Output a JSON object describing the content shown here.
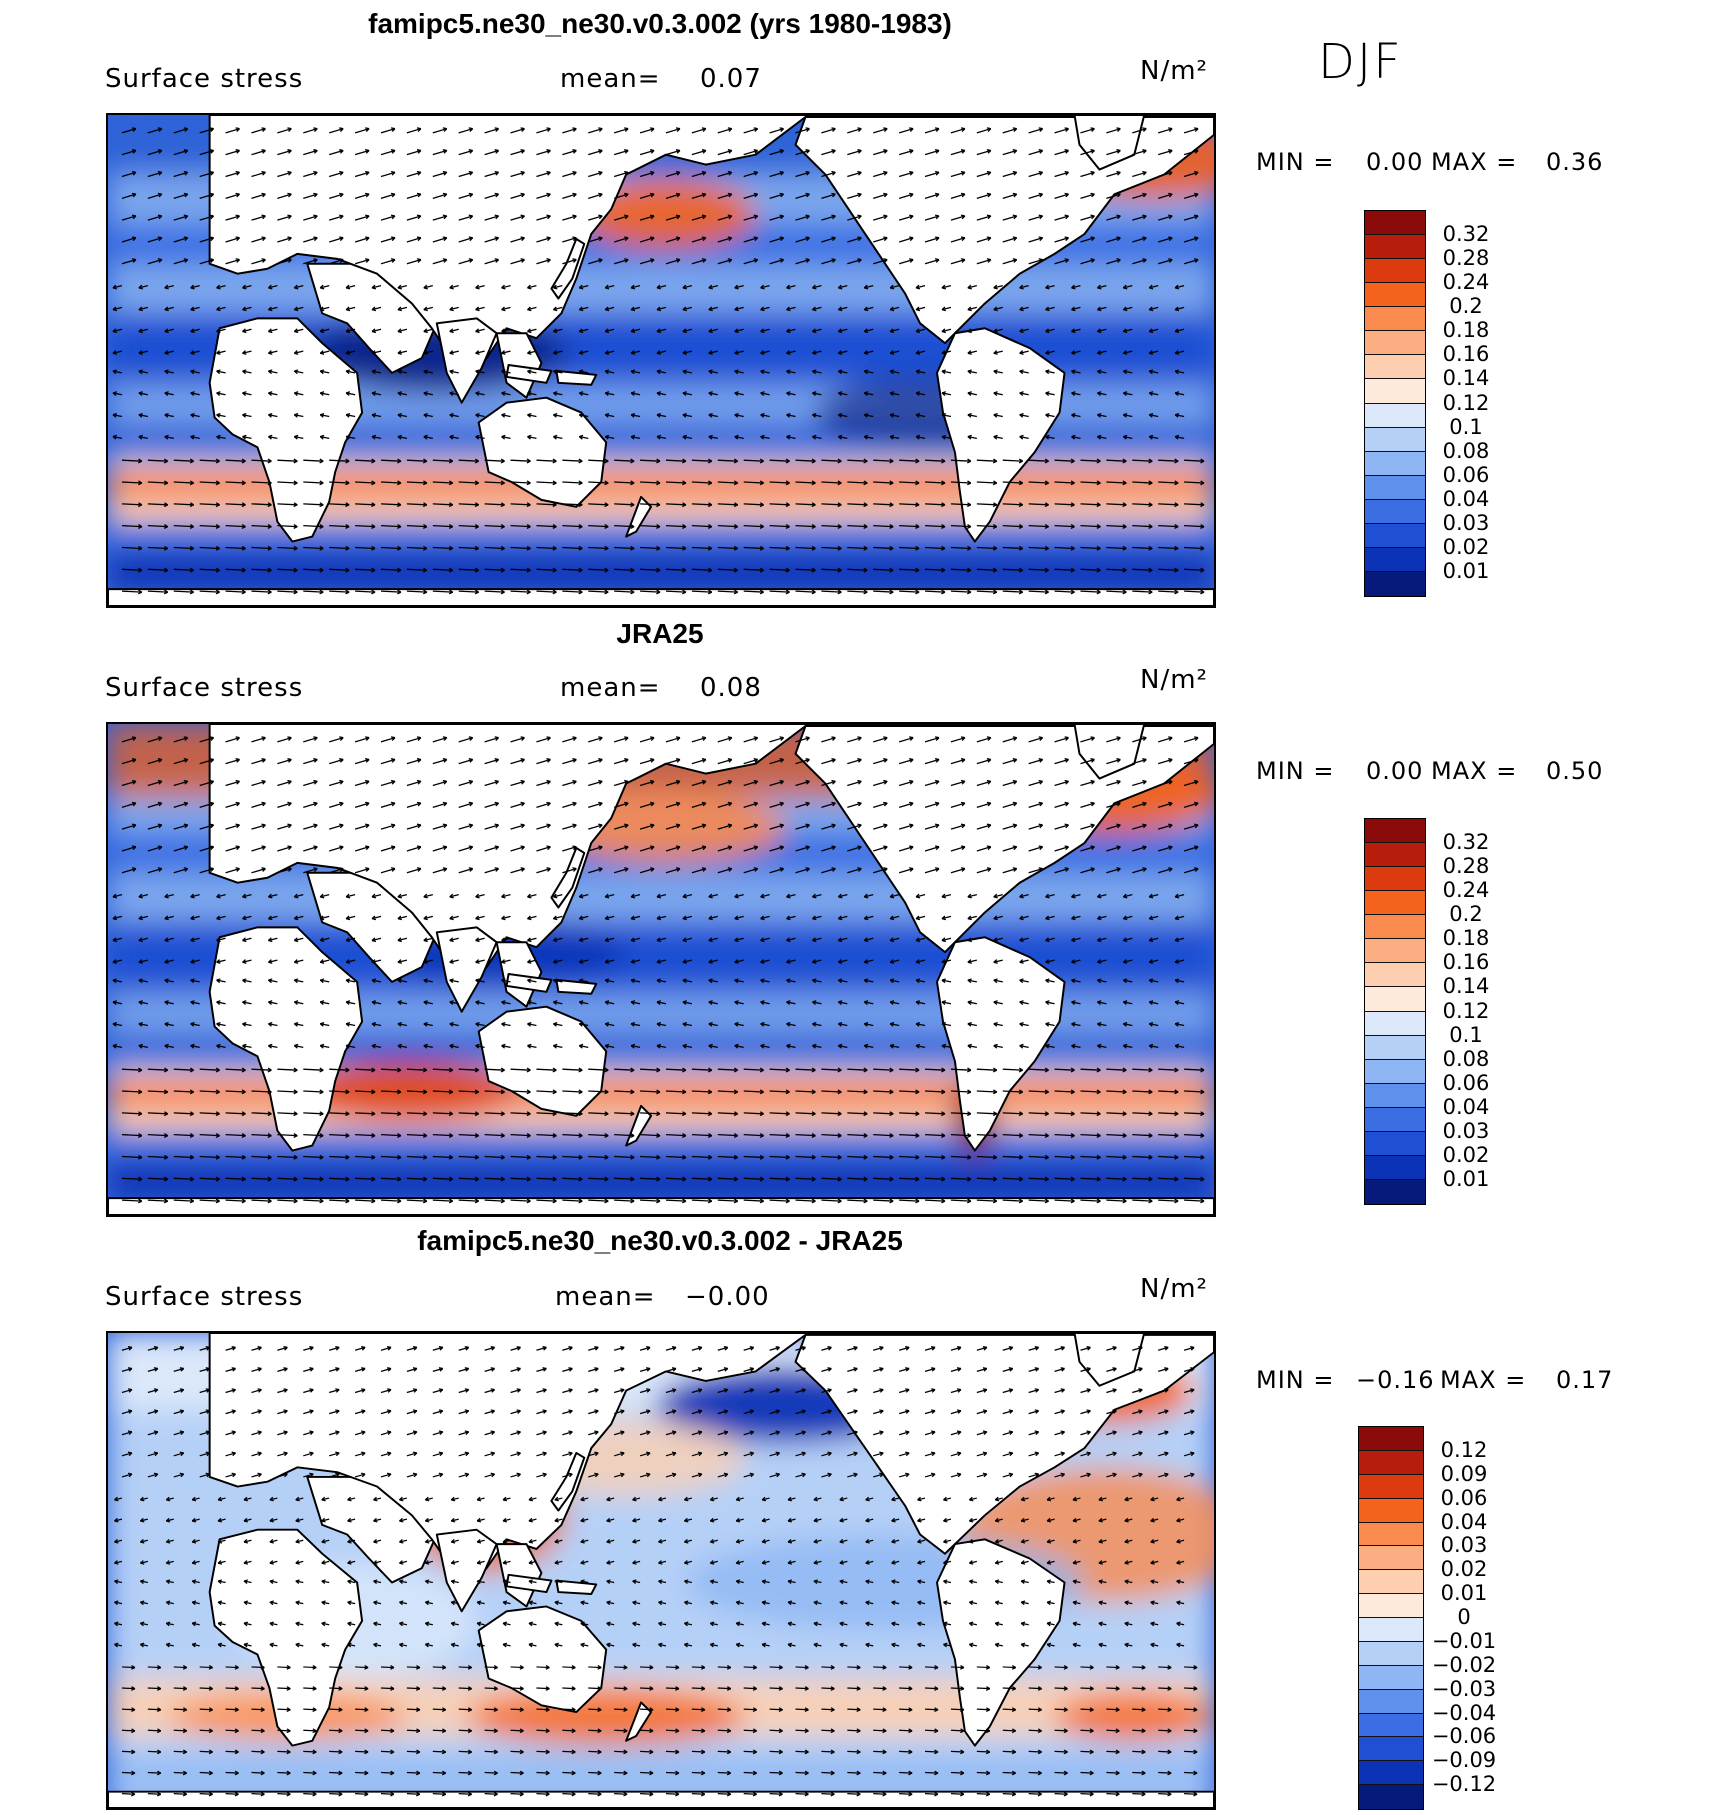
{
  "season": "DJF",
  "panels": [
    {
      "title": "famipc5.ne30_ne30.v0.3.002 (yrs 1980-1983)",
      "variable": "Surface stress",
      "mean_label": "mean=",
      "mean_value": "0.07",
      "units": "N/m²",
      "min_label": "MIN =",
      "min_value": "0.00",
      "max_label": "MAX =",
      "max_value": "0.36",
      "colorbar": {
        "labels": [
          "0.32",
          "0.28",
          "0.24",
          "0.2",
          "0.18",
          "0.16",
          "0.14",
          "0.12",
          "0.1",
          "0.08",
          "0.06",
          "0.04",
          "0.03",
          "0.02",
          "0.01"
        ],
        "colors": [
          "#8b0a0a",
          "#b81d0c",
          "#dc3b0f",
          "#f4621e",
          "#fa8a4e",
          "#fcae83",
          "#fdcfb0",
          "#feeada",
          "#dbe8fa",
          "#b5d0f7",
          "#8db6f3",
          "#5f91ec",
          "#3b6ee3",
          "#1f4fd3",
          "#0c32b6",
          "#061a7c"
        ]
      },
      "map_style": "model"
    },
    {
      "title": "JRA25",
      "variable": "Surface stress",
      "mean_label": "mean=",
      "mean_value": "0.08",
      "units": "N/m²",
      "min_label": "MIN =",
      "min_value": "0.00",
      "max_label": "MAX =",
      "max_value": "0.50",
      "colorbar": {
        "labels": [
          "0.32",
          "0.28",
          "0.24",
          "0.2",
          "0.18",
          "0.16",
          "0.14",
          "0.12",
          "0.1",
          "0.08",
          "0.06",
          "0.04",
          "0.03",
          "0.02",
          "0.01"
        ],
        "colors": [
          "#8b0a0a",
          "#b81d0c",
          "#dc3b0f",
          "#f4621e",
          "#fa8a4e",
          "#fcae83",
          "#fdcfb0",
          "#feeada",
          "#dbe8fa",
          "#b5d0f7",
          "#8db6f3",
          "#5f91ec",
          "#3b6ee3",
          "#1f4fd3",
          "#0c32b6",
          "#061a7c"
        ]
      },
      "map_style": "obs"
    },
    {
      "title": "famipc5.ne30_ne30.v0.3.002 - JRA25",
      "variable": "Surface stress",
      "mean_label": "mean=",
      "mean_value": "−0.00",
      "units": "N/m²",
      "min_label": "MIN =",
      "min_value": "−0.16",
      "max_label": "MAX =",
      "max_value": "0.17",
      "colorbar": {
        "labels": [
          "0.12",
          "0.09",
          "0.06",
          "0.04",
          "0.03",
          "0.02",
          "0.01",
          "0",
          "−0.01",
          "−0.02",
          "−0.03",
          "−0.04",
          "−0.06",
          "−0.09",
          "−0.12"
        ],
        "colors": [
          "#8b0a0a",
          "#b81d0c",
          "#dc3b0f",
          "#f4621e",
          "#fa8a4e",
          "#fcae83",
          "#fdcfb0",
          "#feeada",
          "#dbe8fa",
          "#b5d0f7",
          "#8db6f3",
          "#5f91ec",
          "#3b6ee3",
          "#1f4fd3",
          "#0c32b6",
          "#061a7c"
        ]
      },
      "map_style": "diff"
    }
  ]
}
